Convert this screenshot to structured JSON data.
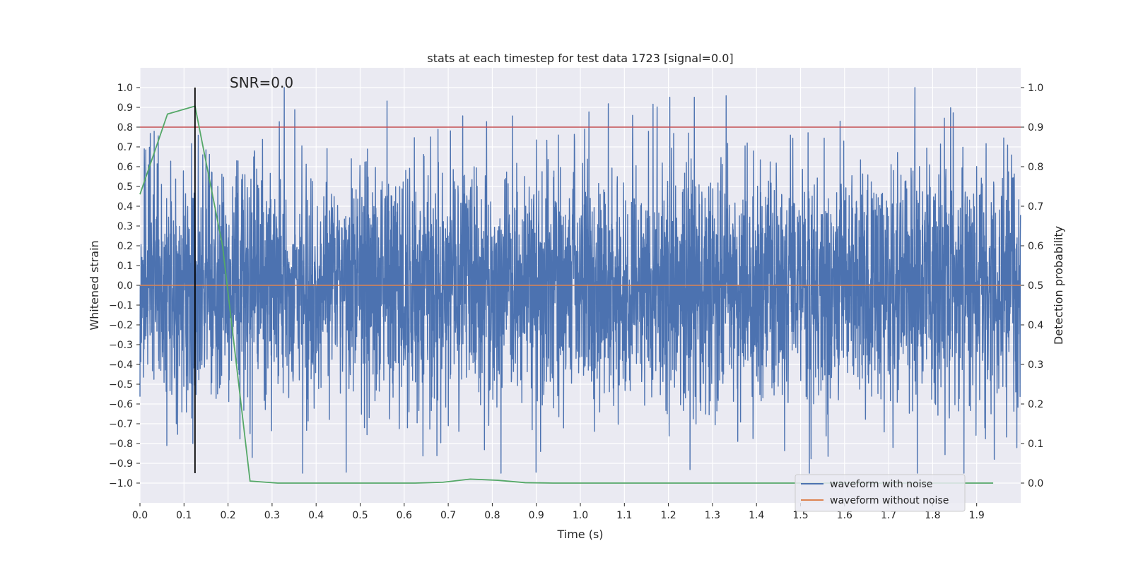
{
  "chart_data": {
    "type": "line",
    "title": "stats at each timestep for test data 1723 [signal=0.0]",
    "annotation": "SNR=0.0",
    "xlabel": "Time (s)",
    "ylabel": "Whitened strain",
    "y2label": "Detection probability",
    "xlim": [
      0.0,
      2.0
    ],
    "ylim": [
      -1.1,
      1.1
    ],
    "y2lim": [
      -0.05,
      1.05
    ],
    "x_ticks": [
      0.0,
      0.1,
      0.2,
      0.3,
      0.4,
      0.5,
      0.6,
      0.7,
      0.8,
      0.9,
      1.0,
      1.1,
      1.2,
      1.3,
      1.4,
      1.5,
      1.6,
      1.7,
      1.8,
      1.9
    ],
    "x_tick_labels": [
      "0.0",
      "0.1",
      "0.2",
      "0.3",
      "0.4",
      "0.5",
      "0.6",
      "0.7",
      "0.8",
      "0.9",
      "1.0",
      "1.1",
      "1.2",
      "1.3",
      "1.4",
      "1.5",
      "1.6",
      "1.7",
      "1.8",
      "1.9"
    ],
    "y_ticks": [
      1.0,
      0.9,
      0.8,
      0.7,
      0.6,
      0.5,
      0.4,
      0.3,
      0.2,
      0.1,
      0.0,
      -0.1,
      -0.2,
      -0.3,
      -0.4,
      -0.5,
      -0.6,
      -0.7,
      -0.8,
      -0.9,
      -1.0
    ],
    "y_tick_labels": [
      "1.0",
      "0.9",
      "0.8",
      "0.7",
      "0.6",
      "0.5",
      "0.4",
      "0.3",
      "0.2",
      "0.1",
      "0.0",
      "−0.1",
      "−0.2",
      "−0.3",
      "−0.4",
      "−0.5",
      "−0.6",
      "−0.7",
      "−0.8",
      "−0.9",
      "−1.0"
    ],
    "y2_ticks": [
      1.0,
      0.9,
      0.8,
      0.7,
      0.6,
      0.5,
      0.4,
      0.3,
      0.2,
      0.1,
      0.0
    ],
    "y2_tick_labels": [
      "1.0",
      "0.9",
      "0.8",
      "0.7",
      "0.6",
      "0.5",
      "0.4",
      "0.3",
      "0.2",
      "0.1",
      "0.0"
    ],
    "grid": true,
    "legend_position": "bottom-right",
    "series": [
      {
        "name": "waveform with noise",
        "color": "#4c72b0",
        "axis": "left",
        "sample_rate_hz": 2048,
        "t_start": 0.0,
        "t_end": 2.0,
        "value_range": [
          -0.95,
          1.0
        ],
        "noise_std": 0.3,
        "highlighted_peaks": [
          {
            "x": 0.01,
            "y": 0.69
          },
          {
            "x": 0.12,
            "y": 0.79
          },
          {
            "x": 0.12,
            "y": -0.8
          },
          {
            "x": 0.26,
            "y": 0.68
          },
          {
            "x": 0.25,
            "y": -0.75
          },
          {
            "x": 0.48,
            "y": 0.64
          },
          {
            "x": 0.51,
            "y": -0.72
          },
          {
            "x": 0.66,
            "y": 0.75
          },
          {
            "x": 0.7,
            "y": -0.71
          },
          {
            "x": 0.82,
            "y": -0.95
          },
          {
            "x": 0.95,
            "y": 0.76
          },
          {
            "x": 1.01,
            "y": 0.79
          },
          {
            "x": 1.59,
            "y": 0.83
          },
          {
            "x": 1.71,
            "y": -0.82
          },
          {
            "x": 1.76,
            "y": 1.0
          },
          {
            "x": 1.94,
            "y": -0.88
          }
        ]
      },
      {
        "name": "waveform without noise",
        "color": "#dd8452",
        "axis": "left",
        "x": [
          0.0,
          2.0
        ],
        "y": [
          0.0,
          0.0
        ]
      },
      {
        "name": "detection probability",
        "color": "#55a868",
        "axis": "right",
        "x": [
          0.0,
          0.0625,
          0.125,
          0.1875,
          0.25,
          0.3125,
          0.375,
          0.4375,
          0.5,
          0.5625,
          0.625,
          0.6875,
          0.75,
          0.8125,
          0.875,
          0.9375,
          1.0,
          1.0625,
          1.125,
          1.1875,
          1.25,
          1.3125,
          1.375,
          1.4375,
          1.5,
          1.5625,
          1.625,
          1.6875,
          1.75,
          1.8125,
          1.875,
          1.9375
        ],
        "y": [
          0.73,
          0.933,
          0.953,
          0.6,
          0.005,
          0.0,
          0.0,
          0.0,
          0.0,
          0.0,
          0.0,
          0.002,
          0.01,
          0.007,
          0.001,
          0.0,
          0.0,
          0.0,
          0.0,
          0.0,
          0.0,
          0.0,
          0.0,
          0.0,
          0.0,
          0.0,
          0.0,
          0.0,
          0.0,
          0.0,
          0.0,
          0.0
        ]
      }
    ],
    "threshold_line": {
      "axis": "right",
      "y": 0.9,
      "color": "#c44e52"
    },
    "marker_line": {
      "x": 0.125,
      "y_from": -0.95,
      "y_to": 1.0,
      "color": "#000000"
    },
    "legend": [
      {
        "label": "waveform with noise",
        "color": "#4c72b0"
      },
      {
        "label": "waveform without noise",
        "color": "#dd8452"
      }
    ],
    "colors": {
      "plot_background": "#eaeaf2",
      "grid": "#ffffff",
      "text": "#262626"
    }
  }
}
